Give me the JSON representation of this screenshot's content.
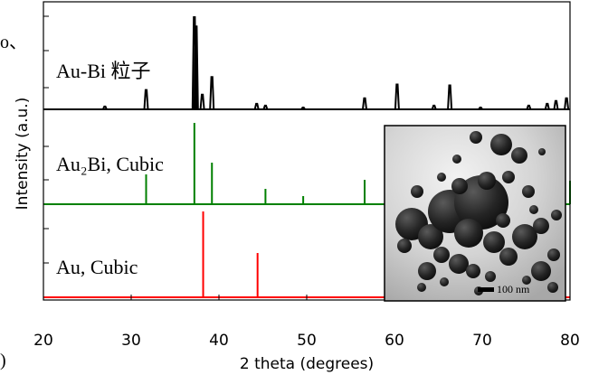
{
  "edge_marks": {
    "top_left": "o、",
    "bottom_left": ")"
  },
  "chart_data": {
    "type": "line",
    "title": "",
    "xlabel": "2 theta (degrees)",
    "ylabel": "Intensity (a.u.)",
    "xlim": [
      20,
      80
    ],
    "x_ticks": [
      20,
      30,
      40,
      50,
      60,
      70,
      80
    ],
    "grid": false,
    "panels": [
      {
        "label": "Au-Bi 粒子",
        "color": "#000000",
        "kind": "profile",
        "series": [
          {
            "x": [
              27.0,
              31.7,
              37.2,
              37.4,
              38.1,
              39.2,
              44.3,
              45.3,
              49.6,
              56.6,
              60.3,
              64.5,
              66.3,
              69.8,
              75.3,
              77.4,
              78.4,
              79.6
            ],
            "y": [
              0.03,
              0.21,
              1.0,
              0.9,
              0.16,
              0.35,
              0.06,
              0.04,
              0.02,
              0.12,
              0.27,
              0.04,
              0.26,
              0.02,
              0.04,
              0.06,
              0.09,
              0.12
            ]
          }
        ]
      },
      {
        "label": "Au₂Bi, Cubic",
        "color": "#008000",
        "kind": "sticks",
        "series": [
          {
            "x": [
              31.7,
              37.2,
              39.2,
              45.3,
              49.6,
              56.6,
              80.0
            ],
            "y": [
              0.33,
              0.9,
              0.46,
              0.17,
              0.09,
              0.27,
              0.26
            ]
          }
        ]
      },
      {
        "label": "Au, Cubic",
        "color": "#ff0000",
        "kind": "sticks",
        "series": [
          {
            "x": [
              38.2,
              44.4
            ],
            "y": [
              0.97,
              0.5
            ]
          }
        ]
      }
    ]
  },
  "inset": {
    "scale_bar_label": "100 nm"
  }
}
